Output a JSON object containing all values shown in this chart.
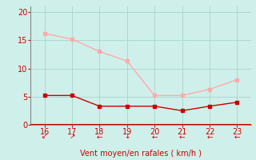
{
  "x": [
    16,
    17,
    18,
    19,
    20,
    21,
    22,
    23
  ],
  "y_rafales": [
    16.2,
    15.2,
    13.0,
    11.3,
    5.2,
    5.2,
    6.3,
    8.0
  ],
  "y_moyen": [
    5.2,
    5.2,
    3.3,
    3.3,
    3.3,
    2.5,
    3.3,
    4.0
  ],
  "color_rafales": "#ffaaaa",
  "color_moyen": "#cc0000",
  "bg_color": "#cff0ea",
  "grid_color": "#aad8d0",
  "axis_color": "#cc0000",
  "xlabel": "Vent moyen/en rafales ( km/h )",
  "xlabel_color": "#cc0000",
  "tick_color": "#cc0000",
  "ylim": [
    0,
    21
  ],
  "xlim": [
    15.5,
    23.5
  ],
  "yticks": [
    0,
    5,
    10,
    15,
    20
  ],
  "xticks": [
    16,
    17,
    18,
    19,
    20,
    21,
    22,
    23
  ],
  "wind_arrows": [
    "↙",
    "↗",
    "←",
    "↓",
    "←",
    "←",
    "←",
    "←"
  ]
}
